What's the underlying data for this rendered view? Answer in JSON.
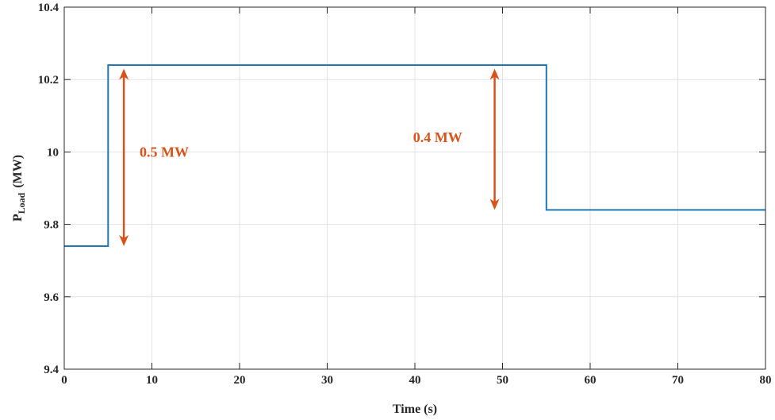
{
  "chart_data": {
    "type": "line",
    "xlabel": "Time (s)",
    "ylabel_main": "P",
    "ylabel_sub": "Load",
    "ylabel_unit": "(MW)",
    "xlim": [
      0,
      80
    ],
    "ylim": [
      9.4,
      10.4
    ],
    "grid": true,
    "xticks": [
      0,
      10,
      20,
      30,
      40,
      50,
      60,
      70,
      80
    ],
    "yticks": [
      9.4,
      9.6,
      9.8,
      10,
      10.2,
      10.4
    ],
    "xtick_labels": [
      "0",
      "10",
      "20",
      "30",
      "40",
      "50",
      "60",
      "70",
      "80"
    ],
    "ytick_labels": [
      "9.4",
      "9.6",
      "9.8",
      "10",
      "10.2",
      "10.4"
    ],
    "series": [
      {
        "color": "#1f77b4",
        "x": [
          0,
          5,
          5,
          55,
          55,
          80
        ],
        "y": [
          9.74,
          9.74,
          10.24,
          10.24,
          9.84,
          9.84
        ]
      }
    ],
    "annotations": [
      {
        "text": "0.5 MW",
        "text_x": 8.6,
        "text_y": 10.0,
        "arrow_x": 6.8,
        "arrow_y1": 9.74,
        "arrow_y2": 10.23,
        "color": "#d95319"
      },
      {
        "text": "0.4 MW",
        "text_x": 39.8,
        "text_y": 10.04,
        "arrow_x": 49.1,
        "arrow_y1": 9.84,
        "arrow_y2": 10.23,
        "color": "#d95319"
      }
    ]
  }
}
